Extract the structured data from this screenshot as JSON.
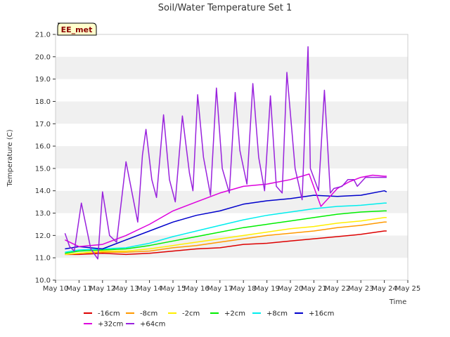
{
  "chart_data": {
    "type": "line",
    "title": "Soil/Water Temperature Set 1",
    "xlabel": "Time",
    "ylabel": "Temperature (C)",
    "badge": "EE_met",
    "xlim": [
      10,
      25
    ],
    "ylim": [
      10.0,
      21.0
    ],
    "x_ticks": [
      10,
      11,
      12,
      13,
      14,
      15,
      16,
      17,
      18,
      19,
      20,
      21,
      22,
      23,
      24,
      25
    ],
    "x_tick_labels": [
      "May 10",
      "May 11",
      "May 12",
      "May 13",
      "May 14",
      "May 15",
      "May 16",
      "May 17",
      "May 18",
      "May 19",
      "May 20",
      "May 21",
      "May 22",
      "May 23",
      "May 24",
      "May 25"
    ],
    "y_ticks": [
      10.0,
      11.0,
      12.0,
      13.0,
      14.0,
      15.0,
      16.0,
      17.0,
      18.0,
      19.0,
      20.0,
      21.0
    ],
    "y_tick_labels": [
      "10.0",
      "11.0",
      "12.0",
      "13.0",
      "14.0",
      "15.0",
      "16.0",
      "17.0",
      "18.0",
      "19.0",
      "20.0",
      "21.0"
    ],
    "grid": "horizontal bands",
    "legend_placement": "bottom",
    "series": [
      {
        "name": "-16cm",
        "color": "#dd0000",
        "x": [
          10.4,
          11,
          12,
          13,
          14,
          15,
          16,
          17,
          18,
          19,
          20,
          21,
          22,
          23,
          24,
          24.1
        ],
        "y": [
          11.15,
          11.15,
          11.2,
          11.15,
          11.2,
          11.3,
          11.4,
          11.45,
          11.6,
          11.65,
          11.75,
          11.85,
          11.95,
          12.05,
          12.2,
          12.2
        ]
      },
      {
        "name": "-8cm",
        "color": "#ff9900",
        "x": [
          10.4,
          11,
          12,
          13,
          14,
          15,
          16,
          17,
          18,
          19,
          20,
          21,
          22,
          23,
          24,
          24.1
        ],
        "y": [
          11.15,
          11.2,
          11.25,
          11.25,
          11.3,
          11.45,
          11.55,
          11.7,
          11.85,
          12.0,
          12.1,
          12.2,
          12.35,
          12.45,
          12.6,
          12.6
        ]
      },
      {
        "name": "-2cm",
        "color": "#ffee00",
        "x": [
          10.4,
          11,
          12,
          13,
          14,
          15,
          16,
          17,
          18,
          19,
          20,
          21,
          22,
          23,
          24,
          24.1
        ],
        "y": [
          11.15,
          11.2,
          11.3,
          11.3,
          11.4,
          11.55,
          11.7,
          11.85,
          12.0,
          12.15,
          12.3,
          12.4,
          12.55,
          12.65,
          12.8,
          12.8
        ]
      },
      {
        "name": "+2cm",
        "color": "#00ee00",
        "x": [
          10.4,
          11,
          12,
          13,
          14,
          15,
          16,
          17,
          18,
          19,
          20,
          21,
          22,
          23,
          24,
          24.1
        ],
        "y": [
          11.2,
          11.3,
          11.35,
          11.4,
          11.55,
          11.75,
          11.95,
          12.15,
          12.35,
          12.5,
          12.65,
          12.8,
          12.95,
          13.05,
          13.1,
          13.1
        ]
      },
      {
        "name": "+8cm",
        "color": "#00eeee",
        "x": [
          10.4,
          11,
          12,
          13,
          14,
          15,
          16,
          17,
          18,
          19,
          20,
          21,
          22,
          23,
          24,
          24.1
        ],
        "y": [
          11.25,
          11.35,
          11.4,
          11.45,
          11.65,
          11.95,
          12.2,
          12.45,
          12.7,
          12.9,
          13.05,
          13.2,
          13.3,
          13.35,
          13.45,
          13.45
        ]
      },
      {
        "name": "+16cm",
        "color": "#0000cc",
        "x": [
          10.4,
          11,
          12,
          13,
          14,
          15,
          16,
          17,
          18,
          19,
          20,
          21,
          22,
          23,
          24,
          24.1
        ],
        "y": [
          11.4,
          11.5,
          11.4,
          11.8,
          12.2,
          12.6,
          12.9,
          13.1,
          13.4,
          13.55,
          13.65,
          13.8,
          13.75,
          13.8,
          14.0,
          13.95
        ]
      },
      {
        "name": "+32cm",
        "color": "#dd00dd",
        "x": [
          10.4,
          11,
          12,
          13,
          14,
          15,
          16,
          17,
          18,
          19,
          20,
          20.8,
          21.3,
          22,
          22.5,
          23,
          23.5,
          24,
          24.1
        ],
        "y": [
          11.8,
          11.5,
          11.6,
          12.0,
          12.5,
          13.1,
          13.5,
          13.9,
          14.2,
          14.3,
          14.5,
          14.75,
          13.3,
          14.1,
          14.4,
          14.6,
          14.7,
          14.65,
          14.65
        ]
      },
      {
        "name": "+64cm",
        "color": "#9922dd",
        "x": [
          10.4,
          10.6,
          10.8,
          11.1,
          11.5,
          11.8,
          12.0,
          12.3,
          12.6,
          13.0,
          13.5,
          13.7,
          13.85,
          14.1,
          14.3,
          14.6,
          14.85,
          15.1,
          15.4,
          15.7,
          15.85,
          16.05,
          16.3,
          16.6,
          16.85,
          17.1,
          17.4,
          17.65,
          17.85,
          18.15,
          18.4,
          18.65,
          18.9,
          19.15,
          19.4,
          19.65,
          19.85,
          20.2,
          20.5,
          20.75,
          20.85,
          21.2,
          21.45,
          21.7,
          21.85,
          22.2,
          22.45,
          22.7,
          22.85,
          23.2,
          23.4,
          23.7,
          23.85,
          24.1
        ],
        "y": [
          12.1,
          11.5,
          11.3,
          13.45,
          11.4,
          10.95,
          13.95,
          12.0,
          11.7,
          15.3,
          12.6,
          15.6,
          16.75,
          14.5,
          13.7,
          17.4,
          14.5,
          13.5,
          17.35,
          14.8,
          14.0,
          18.3,
          15.5,
          13.8,
          18.6,
          15.0,
          13.9,
          18.4,
          15.8,
          14.3,
          18.8,
          15.5,
          14.0,
          18.25,
          14.2,
          13.9,
          19.3,
          15.0,
          13.6,
          20.45,
          15.0,
          14.0,
          18.5,
          13.9,
          14.1,
          14.2,
          14.5,
          14.5,
          14.2,
          14.6,
          14.6,
          14.6,
          14.6,
          14.6
        ]
      }
    ]
  }
}
